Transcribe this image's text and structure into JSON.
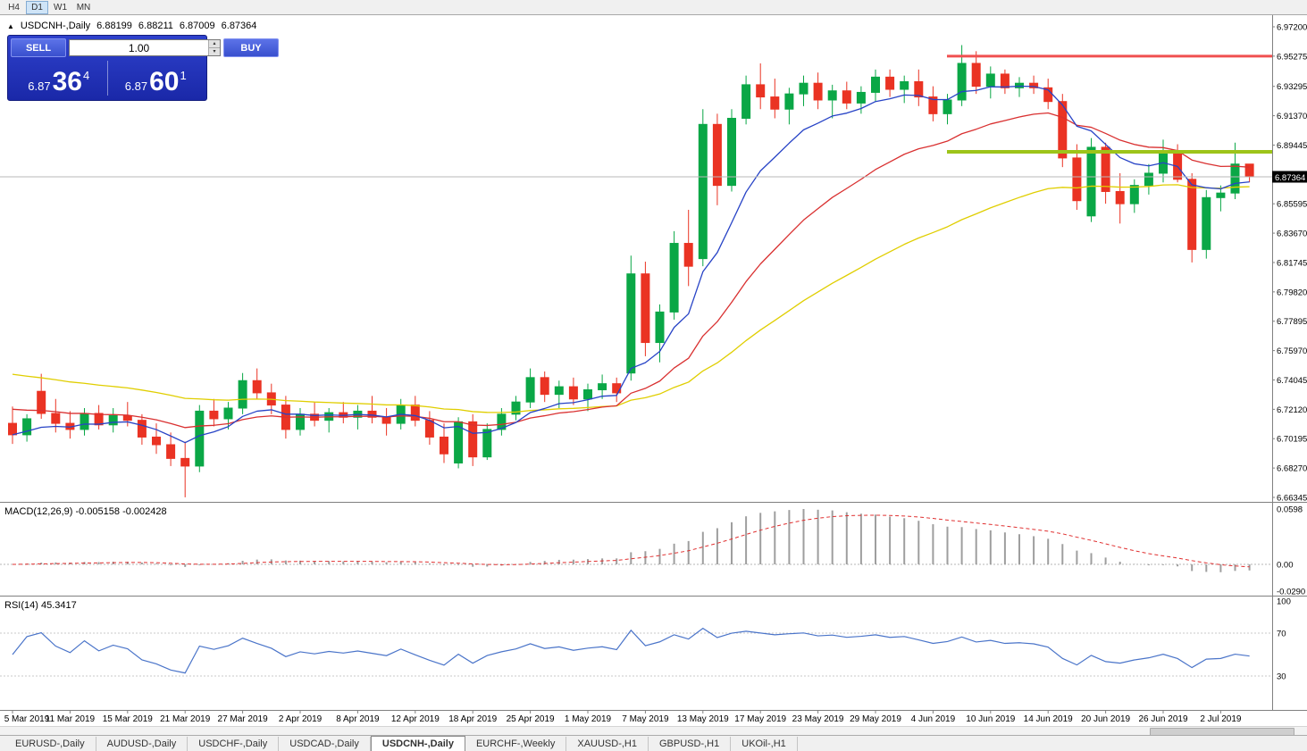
{
  "toolbar": {
    "timeframes": [
      {
        "label": "H4",
        "active": false
      },
      {
        "label": "D1",
        "active": true
      },
      {
        "label": "W1",
        "active": false
      },
      {
        "label": "MN",
        "active": false
      }
    ]
  },
  "chart_header": {
    "collapse_icon": "▲",
    "symbol": "USDCNH-,Daily",
    "open": "6.88199",
    "high": "6.88211",
    "low": "6.87009",
    "close": "6.87364"
  },
  "one_click": {
    "sell_label": "SELL",
    "buy_label": "BUY",
    "volume": "1.00",
    "spin_up_icon": "▴",
    "spin_down_icon": "▾",
    "bid": {
      "small": "6.87",
      "big": "36",
      "sup": "4"
    },
    "ask": {
      "small": "6.87",
      "big": "60",
      "sup": "1"
    }
  },
  "indicators": {
    "macd_label": "MACD(12,26,9) -0.005158 -0.002428",
    "rsi_label": "RSI(14) 45.3417"
  },
  "price_axis": {
    "labels": [
      "6.97200",
      "6.95275",
      "6.93295",
      "6.91370",
      "6.89445",
      "6.85595",
      "6.83670",
      "6.81745",
      "6.79820",
      "6.77895",
      "6.75970",
      "6.74045",
      "6.72120",
      "6.70195",
      "6.68270",
      "6.66345"
    ],
    "current_badge": "6.87364"
  },
  "macd_axis": [
    "0.0598",
    "0.00",
    "-0.0290"
  ],
  "rsi_axis": [
    "100",
    "70",
    "30"
  ],
  "date_axis": [
    "5 Mar 2019",
    "11 Mar 2019",
    "15 Mar 2019",
    "21 Mar 2019",
    "27 Mar 2019",
    "2 Apr 2019",
    "8 Apr 2019",
    "12 Apr 2019",
    "18 Apr 2019",
    "25 Apr 2019",
    "1 May 2019",
    "7 May 2019",
    "13 May 2019",
    "17 May 2019",
    "23 May 2019",
    "29 May 2019",
    "4 Jun 2019",
    "10 Jun 2019",
    "14 Jun 2019",
    "20 Jun 2019",
    "26 Jun 2019",
    "2 Jul 2019"
  ],
  "tabs": [
    {
      "label": "EURUSD-,Daily",
      "active": false
    },
    {
      "label": "AUDUSD-,Daily",
      "active": false
    },
    {
      "label": "USDCHF-,Daily",
      "active": false
    },
    {
      "label": "USDCAD-,Daily",
      "active": false
    },
    {
      "label": "USDCNH-,Daily",
      "active": true
    },
    {
      "label": "EURCHF-,Weekly",
      "active": false
    },
    {
      "label": "XAUUSD-,H1",
      "active": false
    },
    {
      "label": "GBPUSD-,H1",
      "active": false
    },
    {
      "label": "UKOil-,H1",
      "active": false
    }
  ],
  "colors": {
    "bull": "#0AA746",
    "bear": "#EA3323",
    "ma_fast_blue": "#2743C6",
    "ma_mid_red": "#D93030",
    "ma_slow_yellow": "#E0CE00",
    "resistance": "#F05050",
    "support": "#9DC41A",
    "rsi_line": "#4A74C9",
    "macd_signal": "#E03030",
    "macd_hist": "#9E9E9E",
    "panel_blue": "#1C2BB0",
    "badge_bg": "#000000"
  },
  "chart_data": {
    "type": "candlestick",
    "title": "USDCNH-,Daily",
    "symbol": "USDCNH-",
    "timeframe": "Daily",
    "ylim": [
      6.66345,
      6.972
    ],
    "overlays": {
      "resistance_line": 6.95275,
      "support_line": 6.89,
      "current_price": 6.87364
    },
    "moving_averages": [
      {
        "name": "fast",
        "color": "blue",
        "period": 8
      },
      {
        "name": "mid",
        "color": "red",
        "period": 20
      },
      {
        "name": "slow",
        "color": "yellow",
        "period": 45
      }
    ],
    "macd": {
      "fast": 12,
      "slow": 26,
      "signal": 9,
      "current": -0.005158,
      "current_signal": -0.002428
    },
    "rsi": {
      "period": 14,
      "current": 45.3417,
      "levels": [
        70,
        30
      ]
    },
    "candles": [
      [
        "2019-03-05",
        6.712,
        6.723,
        6.6985,
        6.7045
      ],
      [
        "2019-03-06",
        6.7045,
        6.718,
        6.7,
        6.715
      ],
      [
        "2019-03-07",
        6.733,
        6.7445,
        6.715,
        6.7185
      ],
      [
        "2019-03-08",
        6.7185,
        6.728,
        6.706,
        6.712
      ],
      [
        "2019-03-11",
        6.712,
        6.72,
        6.702,
        6.708
      ],
      [
        "2019-03-12",
        6.708,
        6.722,
        6.704,
        6.7185
      ],
      [
        "2019-03-13",
        6.7185,
        6.724,
        6.708,
        6.711
      ],
      [
        "2019-03-14",
        6.711,
        6.722,
        6.706,
        6.717
      ],
      [
        "2019-03-15",
        6.717,
        6.726,
        6.71,
        6.714
      ],
      [
        "2019-03-18",
        6.714,
        6.718,
        6.698,
        6.703
      ],
      [
        "2019-03-19",
        6.703,
        6.712,
        6.692,
        6.698
      ],
      [
        "2019-03-20",
        6.698,
        6.706,
        6.684,
        6.689
      ],
      [
        "2019-03-21",
        6.689,
        6.7,
        6.6635,
        6.684
      ],
      [
        "2019-03-22",
        6.684,
        6.724,
        6.68,
        6.72
      ],
      [
        "2019-03-25",
        6.72,
        6.728,
        6.71,
        6.715
      ],
      [
        "2019-03-26",
        6.715,
        6.726,
        6.708,
        6.722
      ],
      [
        "2019-03-27",
        6.722,
        6.745,
        6.718,
        6.74
      ],
      [
        "2019-03-28",
        6.74,
        6.748,
        6.728,
        6.732
      ],
      [
        "2019-03-29",
        6.732,
        6.738,
        6.718,
        6.724
      ],
      [
        "2019-04-01",
        6.724,
        6.73,
        6.702,
        6.708
      ],
      [
        "2019-04-02",
        6.708,
        6.722,
        6.704,
        6.718
      ],
      [
        "2019-04-03",
        6.718,
        6.726,
        6.71,
        6.714
      ],
      [
        "2019-04-04",
        6.714,
        6.722,
        6.706,
        6.719
      ],
      [
        "2019-04-05",
        6.719,
        6.726,
        6.712,
        6.716
      ],
      [
        "2019-04-08",
        6.716,
        6.724,
        6.708,
        6.72
      ],
      [
        "2019-04-09",
        6.72,
        6.73,
        6.712,
        6.716
      ],
      [
        "2019-04-10",
        6.716,
        6.722,
        6.704,
        6.712
      ],
      [
        "2019-04-11",
        6.712,
        6.728,
        6.708,
        6.724
      ],
      [
        "2019-04-12",
        6.724,
        6.73,
        6.71,
        6.714
      ],
      [
        "2019-04-15",
        6.714,
        6.72,
        6.698,
        6.703
      ],
      [
        "2019-04-16",
        6.703,
        6.712,
        6.686,
        6.692
      ],
      [
        "2019-04-17",
        6.686,
        6.716,
        6.6825,
        6.713
      ],
      [
        "2019-04-18",
        6.713,
        6.718,
        6.684,
        6.69
      ],
      [
        "2019-04-22",
        6.69,
        6.712,
        6.688,
        6.708
      ],
      [
        "2019-04-23",
        6.708,
        6.722,
        6.704,
        6.718
      ],
      [
        "2019-04-24",
        6.718,
        6.73,
        6.714,
        6.726
      ],
      [
        "2019-04-25",
        6.726,
        6.748,
        6.722,
        6.742
      ],
      [
        "2019-04-26",
        6.742,
        6.746,
        6.726,
        6.731
      ],
      [
        "2019-04-29",
        6.731,
        6.74,
        6.722,
        6.736
      ],
      [
        "2019-04-30",
        6.736,
        6.742,
        6.724,
        6.728
      ],
      [
        "2019-05-01",
        6.728,
        6.738,
        6.72,
        6.734
      ],
      [
        "2019-05-02",
        6.734,
        6.744,
        6.728,
        6.738
      ],
      [
        "2019-05-03",
        6.738,
        6.742,
        6.726,
        6.732
      ],
      [
        "2019-05-06",
        6.745,
        6.822,
        6.74,
        6.81
      ],
      [
        "2019-05-07",
        6.81,
        6.818,
        6.756,
        6.765
      ],
      [
        "2019-05-08",
        6.765,
        6.79,
        6.752,
        6.785
      ],
      [
        "2019-05-09",
        6.785,
        6.838,
        6.78,
        6.83
      ],
      [
        "2019-05-10",
        6.83,
        6.852,
        6.802,
        6.815
      ],
      [
        "2019-05-13",
        6.82,
        6.918,
        6.815,
        6.908
      ],
      [
        "2019-05-14",
        6.908,
        6.915,
        6.855,
        6.868
      ],
      [
        "2019-05-15",
        6.868,
        6.918,
        6.864,
        6.912
      ],
      [
        "2019-05-16",
        6.912,
        6.94,
        6.908,
        6.934
      ],
      [
        "2019-05-17",
        6.934,
        6.948,
        6.918,
        6.926
      ],
      [
        "2019-05-20",
        6.926,
        6.938,
        6.912,
        6.918
      ],
      [
        "2019-05-21",
        6.918,
        6.932,
        6.908,
        6.928
      ],
      [
        "2019-05-22",
        6.928,
        6.94,
        6.92,
        6.935
      ],
      [
        "2019-05-23",
        6.935,
        6.942,
        6.918,
        6.924
      ],
      [
        "2019-05-24",
        6.924,
        6.934,
        6.912,
        6.93
      ],
      [
        "2019-05-27",
        6.93,
        6.936,
        6.918,
        6.922
      ],
      [
        "2019-05-28",
        6.922,
        6.933,
        6.915,
        6.929
      ],
      [
        "2019-05-29",
        6.929,
        6.944,
        6.923,
        6.939
      ],
      [
        "2019-05-30",
        6.939,
        6.944,
        6.926,
        6.931
      ],
      [
        "2019-05-31",
        6.931,
        6.94,
        6.922,
        6.936
      ],
      [
        "2019-06-03",
        6.936,
        6.944,
        6.92,
        6.926
      ],
      [
        "2019-06-04",
        6.926,
        6.933,
        6.91,
        6.915
      ],
      [
        "2019-06-05",
        6.915,
        6.928,
        6.908,
        6.924
      ],
      [
        "2019-06-06",
        6.924,
        6.96,
        6.92,
        6.948
      ],
      [
        "2019-06-07",
        6.948,
        6.956,
        6.928,
        6.933
      ],
      [
        "2019-06-10",
        6.933,
        6.946,
        6.925,
        6.941
      ],
      [
        "2019-06-11",
        6.941,
        6.944,
        6.928,
        6.932
      ],
      [
        "2019-06-12",
        6.932,
        6.939,
        6.926,
        6.935
      ],
      [
        "2019-06-13",
        6.935,
        6.94,
        6.928,
        6.932
      ],
      [
        "2019-06-14",
        6.932,
        6.938,
        6.918,
        6.923
      ],
      [
        "2019-06-17",
        6.923,
        6.928,
        6.88,
        6.886
      ],
      [
        "2019-06-18",
        6.886,
        6.895,
        6.852,
        6.858
      ],
      [
        "2019-06-19",
        6.848,
        6.899,
        6.844,
        6.893
      ],
      [
        "2019-06-20",
        6.893,
        6.896,
        6.856,
        6.864
      ],
      [
        "2019-06-21",
        6.864,
        6.876,
        6.843,
        6.856
      ],
      [
        "2019-06-24",
        6.856,
        6.872,
        6.85,
        6.868
      ],
      [
        "2019-06-25",
        6.868,
        6.882,
        6.862,
        6.876
      ],
      [
        "2019-06-26",
        6.876,
        6.898,
        6.87,
        6.89
      ],
      [
        "2019-06-27",
        6.89,
        6.895,
        6.87,
        6.872
      ],
      [
        "2019-06-28",
        6.872,
        6.876,
        6.8175,
        6.826
      ],
      [
        "2019-07-01",
        6.826,
        6.865,
        6.82,
        6.86
      ],
      [
        "2019-07-02",
        6.86,
        6.868,
        6.851,
        6.863
      ],
      [
        "2019-07-03",
        6.863,
        6.896,
        6.859,
        6.882
      ],
      [
        "2019-07-04",
        6.88199,
        6.88211,
        6.87009,
        6.87364
      ]
    ]
  }
}
